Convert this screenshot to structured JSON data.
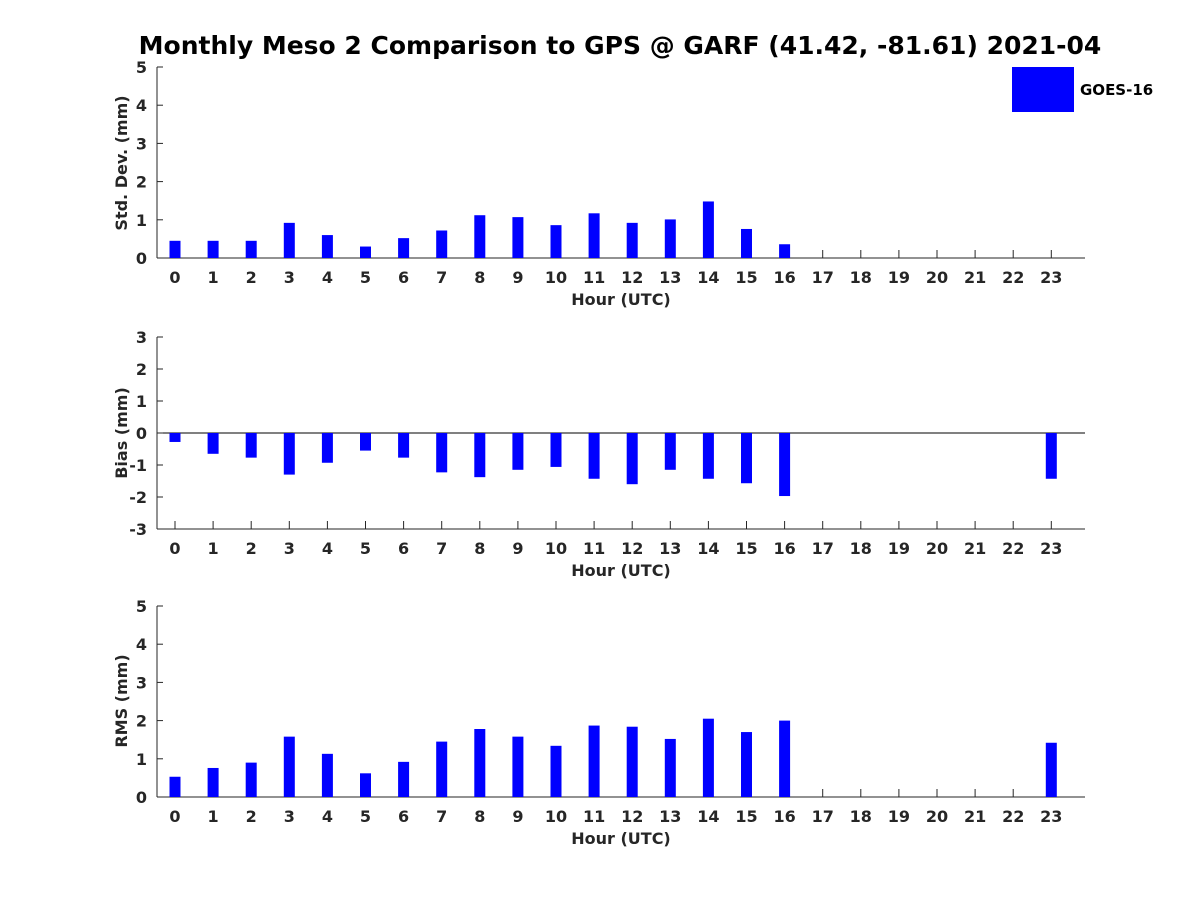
{
  "title": "Monthly Meso 2 Comparison to GPS @ GARF (41.42, -81.61) 2021-04",
  "legend": {
    "label": "GOES-16",
    "color": "#0000ff",
    "placement": "top-right"
  },
  "chart_data": [
    {
      "type": "bar",
      "name": "std-dev",
      "xlabel": "Hour (UTC)",
      "ylabel": "Std. Dev. (mm)",
      "ylim": [
        0,
        5
      ],
      "yticks": [
        0,
        1,
        2,
        3,
        4,
        5
      ],
      "categories": [
        "0",
        "1",
        "2",
        "3",
        "4",
        "5",
        "6",
        "7",
        "8",
        "9",
        "10",
        "11",
        "12",
        "13",
        "14",
        "15",
        "16",
        "17",
        "18",
        "19",
        "20",
        "21",
        "22",
        "23"
      ],
      "series": [
        {
          "values": [
            0.45,
            0.45,
            0.45,
            0.92,
            0.6,
            0.3,
            0.52,
            0.72,
            1.12,
            1.07,
            0.86,
            1.17,
            0.92,
            1.01,
            1.48,
            0.76,
            0.36,
            null,
            null,
            null,
            null,
            null,
            null,
            null
          ],
          "color": "#0000ff"
        }
      ]
    },
    {
      "type": "bar",
      "name": "bias",
      "xlabel": "Hour (UTC)",
      "ylabel": "Bias (mm)",
      "ylim": [
        -3,
        3
      ],
      "yticks": [
        -3,
        -2,
        -1,
        0,
        1,
        2,
        3
      ],
      "categories": [
        "0",
        "1",
        "2",
        "3",
        "4",
        "5",
        "6",
        "7",
        "8",
        "9",
        "10",
        "11",
        "12",
        "13",
        "14",
        "15",
        "16",
        "17",
        "18",
        "19",
        "20",
        "21",
        "22",
        "23"
      ],
      "series": [
        {
          "values": [
            -0.28,
            -0.65,
            -0.77,
            -1.3,
            -0.93,
            -0.55,
            -0.77,
            -1.23,
            -1.38,
            -1.15,
            -1.06,
            -1.43,
            -1.6,
            -1.15,
            -1.43,
            -1.57,
            -1.97,
            null,
            null,
            null,
            null,
            null,
            null,
            -1.43
          ],
          "color": "#0000ff"
        }
      ]
    },
    {
      "type": "bar",
      "name": "rms",
      "xlabel": "Hour (UTC)",
      "ylabel": "RMS (mm)",
      "ylim": [
        0,
        5
      ],
      "yticks": [
        0,
        1,
        2,
        3,
        4,
        5
      ],
      "categories": [
        "0",
        "1",
        "2",
        "3",
        "4",
        "5",
        "6",
        "7",
        "8",
        "9",
        "10",
        "11",
        "12",
        "13",
        "14",
        "15",
        "16",
        "17",
        "18",
        "19",
        "20",
        "21",
        "22",
        "23"
      ],
      "series": [
        {
          "values": [
            0.53,
            0.76,
            0.9,
            1.58,
            1.13,
            0.62,
            0.92,
            1.45,
            1.78,
            1.58,
            1.34,
            1.87,
            1.84,
            1.52,
            2.05,
            1.7,
            2.0,
            null,
            null,
            null,
            null,
            null,
            null,
            1.42
          ],
          "color": "#0000ff"
        }
      ]
    }
  ]
}
